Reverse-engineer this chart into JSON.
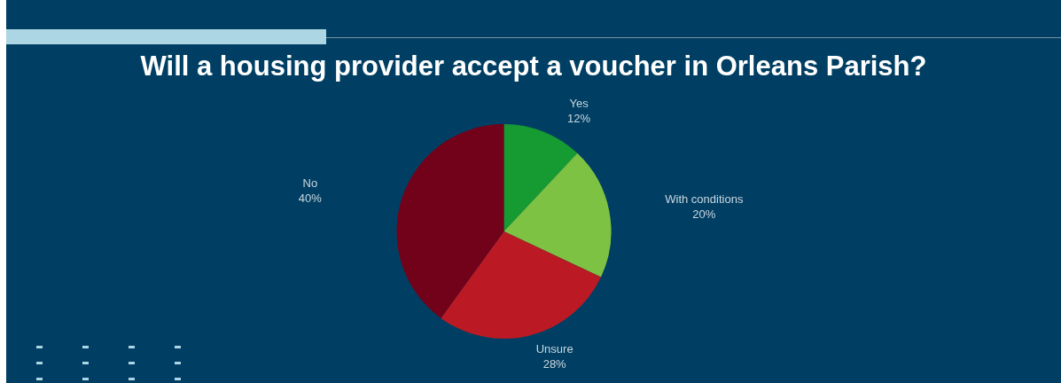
{
  "chart_data": {
    "type": "pie",
    "title": "Will a housing provider accept a voucher in Orleans Parish?",
    "categories": [
      "Yes",
      "With conditions",
      "Unsure",
      "No"
    ],
    "values": [
      12,
      20,
      28,
      40
    ],
    "value_labels": [
      "12%",
      "20%",
      "28%",
      "40%"
    ],
    "colors": [
      "#169b33",
      "#7dc242",
      "#bb1a24",
      "#72021a"
    ],
    "legend": false
  }
}
